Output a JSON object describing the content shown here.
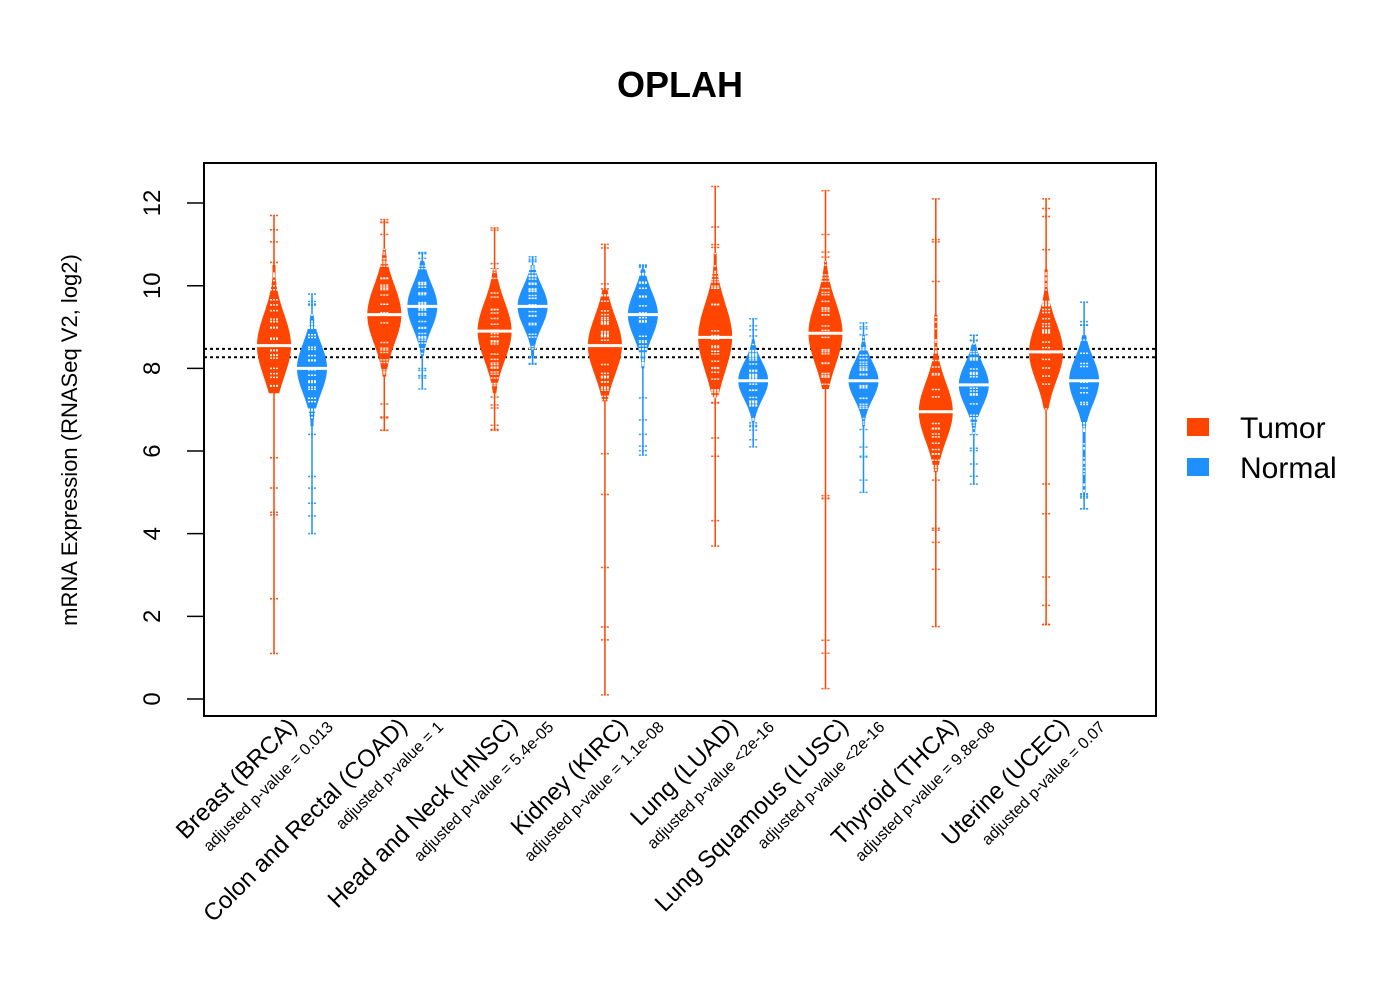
{
  "chart_data": {
    "type": "violin",
    "title": "OPLAH",
    "ylabel": "mRNA Expression (RNASeq V2, log2)",
    "xlabel": "",
    "ylim": [
      -0.4,
      13.3
    ],
    "yticks": [
      0,
      2,
      4,
      6,
      8,
      10,
      12
    ],
    "reference_lines": [
      8.27,
      8.47
    ],
    "legend": {
      "placement": "right",
      "entries": [
        {
          "name": "Tumor",
          "color": "#FF4500"
        },
        {
          "name": "Normal",
          "color": "#1E90FF"
        }
      ]
    },
    "categories": [
      {
        "label": "Breast (BRCA)",
        "pvalue": "adjusted p-value = 0.013",
        "tumor": {
          "min": 1.1,
          "max": 11.7,
          "median": 8.55,
          "lo": 7.4,
          "hi": 10.5,
          "sd": 0.75
        },
        "normal": {
          "min": 4.0,
          "max": 9.8,
          "median": 8.0,
          "lo": 6.6,
          "hi": 9.3,
          "sd": 0.6
        }
      },
      {
        "label": "Colon and Rectal (COAD)",
        "pvalue": "adjusted p-value = 1",
        "tumor": {
          "min": 6.5,
          "max": 11.6,
          "median": 9.3,
          "lo": 7.8,
          "hi": 10.9,
          "sd": 0.7
        },
        "normal": {
          "min": 7.5,
          "max": 10.8,
          "median": 9.5,
          "lo": 8.3,
          "hi": 10.6,
          "sd": 0.55
        }
      },
      {
        "label": "Head and Neck (HNSC)",
        "pvalue": "adjusted p-value = 5.4e-05",
        "tumor": {
          "min": 6.5,
          "max": 11.4,
          "median": 8.9,
          "lo": 7.4,
          "hi": 10.4,
          "sd": 0.7
        },
        "normal": {
          "min": 8.1,
          "max": 10.7,
          "median": 9.5,
          "lo": 8.3,
          "hi": 10.5,
          "sd": 0.5
        }
      },
      {
        "label": "Kidney (KIRC)",
        "pvalue": "adjusted p-value = 1.1e-08",
        "tumor": {
          "min": 0.1,
          "max": 11.0,
          "median": 8.55,
          "lo": 7.2,
          "hi": 9.9,
          "sd": 0.7
        },
        "normal": {
          "min": 5.9,
          "max": 10.5,
          "median": 9.3,
          "lo": 8.0,
          "hi": 10.4,
          "sd": 0.55
        }
      },
      {
        "label": "Lung (LUAD)",
        "pvalue": "adjusted p-value <2e-16",
        "tumor": {
          "min": 3.7,
          "max": 12.4,
          "median": 8.75,
          "lo": 7.3,
          "hi": 10.8,
          "sd": 0.8
        },
        "normal": {
          "min": 6.1,
          "max": 9.2,
          "median": 7.7,
          "lo": 6.7,
          "hi": 8.7,
          "sd": 0.45
        }
      },
      {
        "label": "Lung Squamous (LUSC)",
        "pvalue": "adjusted p-value <2e-16",
        "tumor": {
          "min": 0.25,
          "max": 12.3,
          "median": 8.85,
          "lo": 7.5,
          "hi": 10.6,
          "sd": 0.75
        },
        "normal": {
          "min": 5.0,
          "max": 9.1,
          "median": 7.7,
          "lo": 6.6,
          "hi": 8.8,
          "sd": 0.45
        }
      },
      {
        "label": "Thyroid (THCA)",
        "pvalue": "adjusted p-value = 9.8e-08",
        "tumor": {
          "min": 1.75,
          "max": 12.1,
          "median": 6.95,
          "lo": 5.5,
          "hi": 9.3,
          "sd": 0.7
        },
        "normal": {
          "min": 5.2,
          "max": 8.8,
          "median": 7.6,
          "lo": 6.4,
          "hi": 8.6,
          "sd": 0.5
        }
      },
      {
        "label": "Uterine (UCEC)",
        "pvalue": "adjusted p-value = 0.07",
        "tumor": {
          "min": 1.8,
          "max": 12.1,
          "median": 8.4,
          "lo": 7.0,
          "hi": 10.4,
          "sd": 0.7
        },
        "normal": {
          "min": 4.6,
          "max": 9.6,
          "median": 7.7,
          "lo": 5.0,
          "hi": 8.8,
          "sd": 0.55
        }
      }
    ]
  }
}
